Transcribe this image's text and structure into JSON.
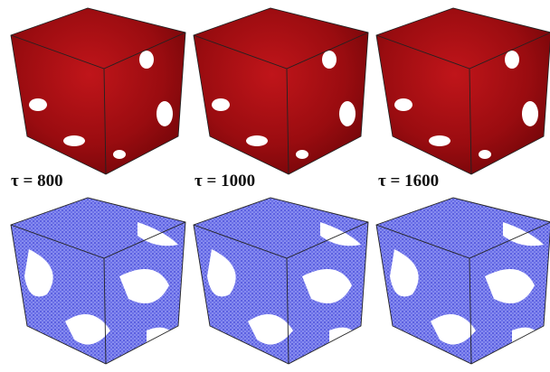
{
  "panels": [
    {
      "label": "τ = 800"
    },
    {
      "label": "τ = 1000"
    },
    {
      "label": "τ = 1600"
    }
  ]
}
